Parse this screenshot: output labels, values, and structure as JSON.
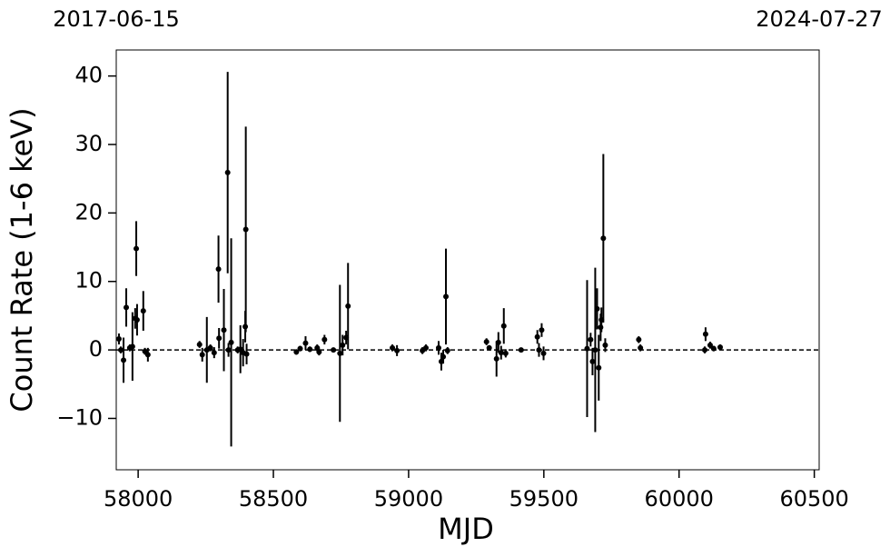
{
  "chart_data": {
    "type": "errorbar",
    "xlabel": "MJD",
    "ylabel": "Count Rate (1-6 keV)",
    "xlim": [
      57919,
      60518
    ],
    "ylim": [
      -17.5,
      43.8
    ],
    "xticks": [
      58000,
      58500,
      59000,
      59500,
      60000,
      60500
    ],
    "yticks": [
      {
        "value": -10,
        "label": "−10"
      },
      0,
      10,
      20,
      30,
      40
    ],
    "x2ticks": [
      {
        "value": 57919,
        "label": "2017-06-15"
      },
      {
        "value": 60518,
        "label": "2024-07-27"
      }
    ],
    "hline": 0,
    "color": "#000000",
    "x": [
      57929,
      57936,
      57946,
      57956,
      57969,
      57979,
      57989,
      57993,
      57996,
      58019,
      58025,
      58036,
      58227,
      58237,
      58254,
      58267,
      58281,
      58297,
      58299,
      58317,
      58331,
      58334,
      58344,
      58368,
      58378,
      58388,
      58398,
      58396,
      58401,
      58585,
      58599,
      58619,
      58635,
      58662,
      58669,
      58689,
      58722,
      58746,
      58756,
      58769,
      58776,
      58940,
      58957,
      59051,
      59064,
      59111,
      59121,
      59128,
      59138,
      59144,
      59288,
      59298,
      59325,
      59332,
      59342,
      59352,
      59359,
      59416,
      59476,
      59482,
      59492,
      59499,
      59660,
      59673,
      59680,
      59690,
      59697,
      59703,
      59710,
      59713,
      59720,
      59727,
      59851,
      59857,
      60095,
      60098,
      60115,
      60128,
      60152
    ],
    "values": [
      1.6,
      0,
      -1.5,
      6.2,
      0.3,
      0.5,
      4.6,
      14.8,
      4.4,
      5.7,
      -0.2,
      -0.7,
      0.8,
      -0.7,
      0,
      0.3,
      -0.4,
      11.8,
      1.7,
      2.9,
      25.9,
      0,
      1.1,
      0,
      0.1,
      -0.4,
      17.6,
      3.4,
      -0.6,
      -0.3,
      0.2,
      1,
      0.1,
      0.3,
      -0.3,
      1.5,
      0,
      -0.5,
      0.7,
      1.8,
      6.4,
      0.3,
      -0.1,
      -0.1,
      0.3,
      0.3,
      -1.7,
      -1,
      7.8,
      -0.1,
      1.2,
      0.3,
      -1.3,
      1.1,
      -0.4,
      3.5,
      -0.5,
      0,
      1.9,
      0,
      2.9,
      -0.5,
      0.2,
      1.5,
      -1.7,
      0,
      6,
      -2.6,
      3.3,
      4.4,
      16.3,
      0.7,
      1.5,
      0.3,
      0,
      2.3,
      0.7,
      0.2,
      0.4
    ],
    "errors": [
      0.8,
      0.5,
      3.3,
      2.8,
      0.5,
      5,
      1.5,
      4,
      2.3,
      2.9,
      0.5,
      1,
      0.5,
      1,
      4.8,
      0.5,
      0.8,
      4.9,
      1.5,
      6,
      14.7,
      1,
      15.2,
      0.5,
      3.5,
      2,
      15,
      2.3,
      1.5,
      0.4,
      0.4,
      1,
      0.4,
      0.5,
      0.5,
      0.7,
      0.3,
      10,
      1.5,
      1,
      6.3,
      0.5,
      0.8,
      0.5,
      0.5,
      1,
      1.3,
      1,
      7,
      0.5,
      0.5,
      0.4,
      2.6,
      1.5,
      1,
      2.6,
      0.6,
      0.3,
      1,
      1,
      1,
      1,
      10,
      1,
      2,
      12,
      3,
      4.8,
      2,
      1.8,
      12.3,
      1,
      0.5,
      0.5,
      0.5,
      1,
      0.5,
      0.4,
      0.4
    ]
  }
}
